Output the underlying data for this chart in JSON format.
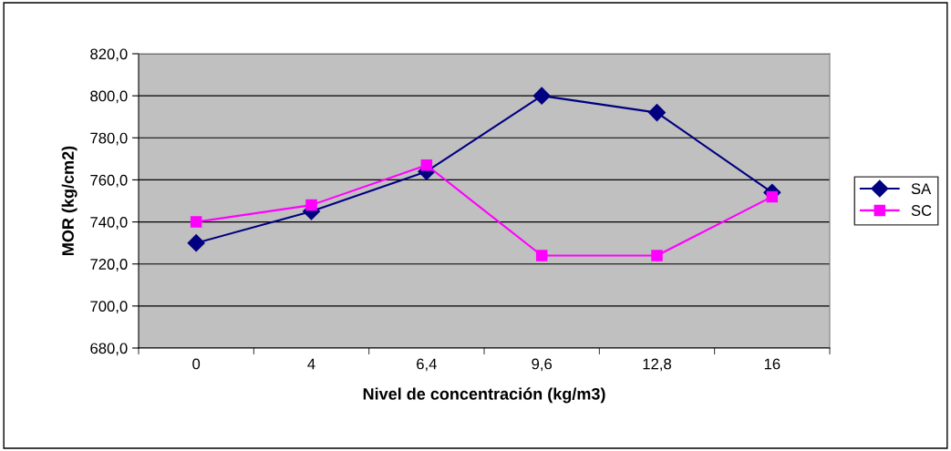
{
  "chart_data": {
    "type": "line",
    "xlabel": "Nivel de concentración (kg/m3)",
    "ylabel": "MOR (kg/cm2)",
    "categories": [
      "0",
      "4",
      "6,4",
      "9,6",
      "12,8",
      "16"
    ],
    "series": [
      {
        "name": "SA",
        "color": "#000080",
        "marker": "diamond",
        "values": [
          730,
          745,
          764,
          800,
          792,
          754
        ]
      },
      {
        "name": "SC",
        "color": "#ff00ff",
        "marker": "square",
        "values": [
          740,
          748,
          767,
          724,
          724,
          752
        ]
      }
    ],
    "ylim": [
      680,
      820
    ],
    "yticks": [
      {
        "value": 680,
        "label": "680,0"
      },
      {
        "value": 700,
        "label": "700,0"
      },
      {
        "value": 720,
        "label": "720,0"
      },
      {
        "value": 740,
        "label": "740,0"
      },
      {
        "value": 760,
        "label": "760,0"
      },
      {
        "value": 780,
        "label": "780,0"
      },
      {
        "value": 800,
        "label": "800,0"
      },
      {
        "value": 820,
        "label": "820,0"
      }
    ],
    "grid": "y",
    "legend": "right",
    "line_style": "solid"
  }
}
